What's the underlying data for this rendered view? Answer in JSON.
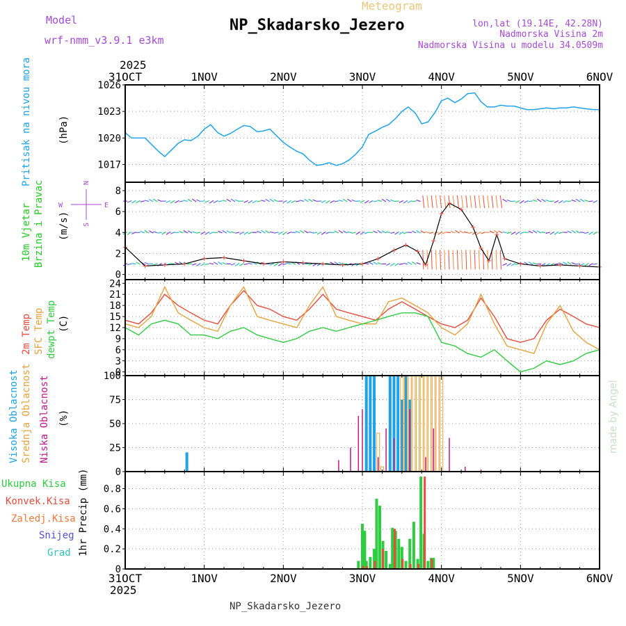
{
  "header": {
    "title": "NP_Skadarsko_Jezero",
    "subtitle": "Meteogram",
    "model_label": "Model",
    "model_name": "wrf-nmm_v3.9.1 e3km",
    "lonlat": "lon,lat (19.14E, 42.28N)",
    "altitude_station": "Nadmorska Visina 2m",
    "altitude_model": "Nadmorska Visina u modelu 34.0509m",
    "footer_title": "NP_Skadarsko_Jezero",
    "credit": "made by Angel"
  },
  "time_axis": {
    "labels": [
      "31OCT",
      "1NOV",
      "2NOV",
      "3NOV",
      "4NOV",
      "5NOV",
      "6NOV"
    ],
    "year": "2025",
    "range_days": [
      0,
      6
    ]
  },
  "colors": {
    "pressure": "#1ca3ec",
    "wind_label": "#22cc22",
    "wind_speed": "#e74c3c",
    "temp2m": "#e74c3c",
    "sfc_temp": "#e6a23c",
    "dewpoint": "#2ecc40",
    "cloud_high": "#1ca3ec",
    "cloud_mid": "#e6a23c",
    "cloud_low": "#c0188a",
    "precip_total": "#2ecc40",
    "precip_conv": "#e74c3c",
    "precip_ice": "#f07a3a",
    "snow": "#5050dd",
    "graupel": "#2ec4b6",
    "purple_text": "#a64ad6",
    "title_gold": "#e8c77a"
  },
  "chart_data": [
    {
      "type": "line",
      "title": "Pritisak na nivou mora",
      "ylabel": "(hPa)",
      "ylim": [
        1015,
        1026
      ],
      "yticks": [
        1017,
        1020,
        1023,
        1026
      ],
      "x_days": [
        0,
        0.08,
        0.17,
        0.25,
        0.33,
        0.42,
        0.5,
        0.58,
        0.67,
        0.75,
        0.83,
        0.92,
        1.0,
        1.08,
        1.17,
        1.25,
        1.33,
        1.42,
        1.5,
        1.58,
        1.67,
        1.75,
        1.83,
        1.92,
        2.0,
        2.08,
        2.17,
        2.25,
        2.33,
        2.42,
        2.5,
        2.58,
        2.67,
        2.75,
        2.83,
        2.92,
        3.0,
        3.08,
        3.17,
        3.25,
        3.33,
        3.42,
        3.5,
        3.58,
        3.67,
        3.75,
        3.83,
        3.92,
        4.0,
        4.08,
        4.17,
        4.25,
        4.33,
        4.42,
        4.5,
        4.58,
        4.67,
        4.75,
        4.83,
        4.92,
        5.0,
        5.08,
        5.17,
        5.25,
        5.33,
        5.42,
        5.5,
        5.58,
        5.67,
        5.75,
        5.83,
        5.92,
        6.0
      ],
      "series": [
        {
          "name": "Pressure",
          "values": [
            1020.6,
            1020.0,
            1020.0,
            1020.0,
            1019.3,
            1018.5,
            1017.9,
            1018.6,
            1019.4,
            1019.8,
            1019.7,
            1020.2,
            1021.0,
            1021.5,
            1020.6,
            1020.2,
            1020.5,
            1021.0,
            1021.4,
            1021.3,
            1020.7,
            1020.8,
            1021.0,
            1020.2,
            1019.5,
            1019.0,
            1018.5,
            1018.2,
            1017.5,
            1016.9,
            1017.0,
            1017.2,
            1016.9,
            1017.1,
            1017.5,
            1018.2,
            1019.0,
            1020.4,
            1020.8,
            1021.2,
            1021.5,
            1022.2,
            1023.0,
            1023.5,
            1022.8,
            1021.6,
            1021.8,
            1022.9,
            1024.2,
            1024.5,
            1024.0,
            1024.4,
            1025.0,
            1025.1,
            1024.1,
            1023.5,
            1023.5,
            1023.7,
            1023.6,
            1023.6,
            1023.4,
            1023.2,
            1023.2,
            1023.3,
            1023.4,
            1023.3,
            1023.4,
            1023.4,
            1023.5,
            1023.4,
            1023.3,
            1023.2,
            1023.2
          ]
        }
      ]
    },
    {
      "type": "scatter",
      "title": "10m Vjetar",
      "subtitle": "Brzina i Pravac",
      "ylabel": "(m/s)",
      "ylim": [
        -0.5,
        8.8
      ],
      "yticks": [
        0,
        2,
        4,
        6,
        8
      ],
      "compass": [
        "N",
        "E",
        "S",
        "W"
      ],
      "x_days": [
        0,
        0.25,
        0.5,
        0.75,
        1.0,
        1.25,
        1.5,
        1.75,
        2.0,
        2.25,
        2.5,
        2.75,
        3.0,
        3.2,
        3.4,
        3.55,
        3.7,
        3.8,
        3.9,
        4.0,
        4.1,
        4.25,
        4.4,
        4.5,
        4.6,
        4.7,
        4.8,
        5.0,
        5.25,
        5.5,
        5.75,
        6.0
      ],
      "series": [
        {
          "name": "Wind speed",
          "values": [
            2.6,
            0.8,
            0.9,
            1.0,
            1.5,
            1.6,
            1.3,
            1.0,
            1.2,
            1.1,
            1.0,
            0.9,
            1.0,
            1.5,
            2.3,
            2.8,
            2.2,
            0.9,
            3.2,
            5.8,
            6.8,
            6.2,
            4.5,
            2.5,
            1.3,
            3.8,
            1.5,
            1.0,
            0.8,
            0.9,
            0.8,
            0.7
          ]
        }
      ],
      "direction_rows": [
        7,
        4,
        1
      ]
    },
    {
      "type": "line",
      "title": "2m Temp",
      "subtitle": "SFC Temp",
      "subtitle2": "dewpt Temp",
      "ylabel": "(C)",
      "ylim": [
        -1,
        25
      ],
      "yticks": [
        0,
        3,
        6,
        9,
        12,
        15,
        18,
        21,
        24
      ],
      "x_days": [
        0,
        0.17,
        0.33,
        0.5,
        0.67,
        0.83,
        1.0,
        1.17,
        1.33,
        1.5,
        1.67,
        1.83,
        2.0,
        2.17,
        2.33,
        2.5,
        2.67,
        2.83,
        3.0,
        3.17,
        3.33,
        3.5,
        3.67,
        3.83,
        4.0,
        4.17,
        4.33,
        4.5,
        4.67,
        4.83,
        5.0,
        5.17,
        5.33,
        5.5,
        5.67,
        5.83,
        6.0
      ],
      "series": [
        {
          "name": "2m Temp",
          "values": [
            14,
            13,
            16,
            21,
            18,
            16,
            14,
            13,
            18,
            22,
            18,
            17,
            15,
            14,
            17,
            21,
            17,
            16,
            15,
            14,
            17,
            19,
            17,
            15,
            13,
            12,
            14,
            20,
            15,
            9,
            8,
            9,
            14,
            17,
            15,
            13,
            12
          ]
        },
        {
          "name": "SFC Temp",
          "values": [
            13,
            12,
            15,
            23,
            16,
            14,
            12,
            11,
            18,
            23,
            15,
            14,
            13,
            12,
            18,
            23,
            15,
            14,
            13,
            13,
            19,
            20,
            18,
            16,
            12,
            10,
            13,
            21,
            13,
            7,
            6,
            5,
            13,
            18,
            11,
            8,
            6
          ]
        },
        {
          "name": "Dew point",
          "values": [
            12,
            10,
            13,
            14,
            13,
            10,
            10,
            9,
            11,
            12,
            10,
            9,
            8,
            9,
            11,
            12,
            11,
            12,
            13,
            14,
            15,
            16,
            16,
            15,
            8,
            7,
            5,
            4,
            6,
            3,
            0,
            1,
            3,
            2,
            3,
            5,
            6
          ]
        }
      ]
    },
    {
      "type": "bar",
      "title": "Visoka Oblacnost",
      "subtitle": "Srednja Oblacnost",
      "subtitle2": "Niska Oblacnost",
      "ylabel": "(%)",
      "ylim": [
        0,
        100
      ],
      "yticks": [
        0,
        25,
        50,
        75,
        100
      ],
      "series": [
        {
          "name": "High",
          "x_days": [
            0.78,
            3.05,
            3.1,
            3.15,
            3.35,
            3.4,
            3.45,
            3.5,
            3.55,
            3.6
          ],
          "values": [
            20,
            100,
            100,
            100,
            100,
            100,
            100,
            75,
            100,
            75
          ]
        },
        {
          "name": "Mid",
          "x_days": [
            3.2,
            3.25,
            3.5,
            3.55,
            3.6,
            3.65,
            3.7,
            3.75,
            3.8,
            3.85,
            3.9,
            3.95,
            4.0
          ],
          "values": [
            40,
            5,
            100,
            100,
            100,
            100,
            100,
            100,
            100,
            100,
            100,
            100,
            100
          ]
        },
        {
          "name": "Low",
          "x_days": [
            2.7,
            2.85,
            2.95,
            3.0,
            3.2,
            3.3,
            3.4,
            3.6,
            3.8,
            3.9,
            4.1,
            4.3,
            4.5
          ],
          "values": [
            12,
            25,
            58,
            65,
            15,
            45,
            35,
            65,
            15,
            45,
            35,
            5,
            2
          ]
        }
      ]
    },
    {
      "type": "bar",
      "title": "Ukupna Kisa",
      "ylabel": "1hr Precip (mm)",
      "legend": [
        "Ukupna Kisa",
        "Konvek.Kisa",
        "Zaledj.Kisa",
        "Snijeg",
        "Grad"
      ],
      "ylim": [
        0,
        0.97
      ],
      "yticks": [
        0,
        0.2,
        0.4,
        0.6,
        0.8
      ],
      "series": [
        {
          "name": "Total",
          "x_days": [
            2.95,
            3.0,
            3.03,
            3.05,
            3.1,
            3.15,
            3.18,
            3.22,
            3.26,
            3.3,
            3.35,
            3.38,
            3.42,
            3.46,
            3.5,
            3.55,
            3.6,
            3.65,
            3.7,
            3.74,
            3.78,
            3.83,
            3.87,
            3.9
          ],
          "values": [
            0.08,
            0.45,
            0.38,
            0.08,
            0.12,
            0.2,
            0.7,
            0.63,
            0.28,
            0.18,
            0.05,
            0.41,
            0.38,
            0.3,
            0.22,
            0.08,
            0.3,
            0.47,
            0.1,
            0.92,
            0.35,
            0.08,
            0.11,
            0.11
          ]
        },
        {
          "name": "Convective",
          "x_days": [
            3.0,
            3.05,
            3.15,
            3.25,
            3.4,
            3.5,
            3.6,
            3.7,
            3.78,
            3.87
          ],
          "values": [
            0.03,
            0.03,
            0.08,
            0.2,
            0.4,
            0.1,
            0.05,
            0.05,
            0.92,
            0.1
          ]
        }
      ]
    }
  ]
}
